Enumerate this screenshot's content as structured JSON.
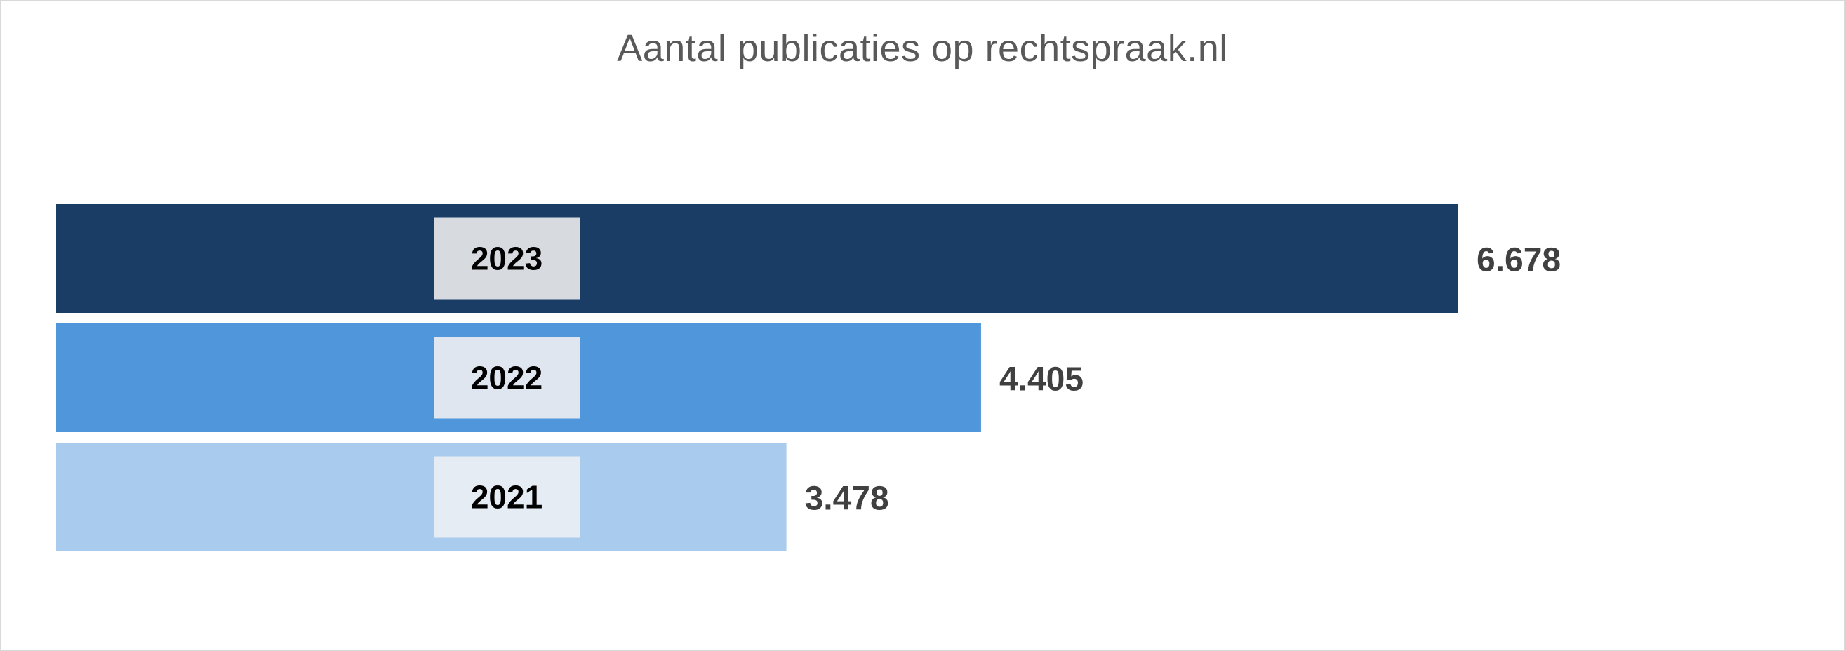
{
  "chart_data": {
    "type": "bar",
    "orientation": "horizontal",
    "title": "Aantal publicaties op rechtspraak.nl",
    "categories": [
      "2023",
      "2022",
      "2021"
    ],
    "values": [
      6678,
      4405,
      3478
    ],
    "value_labels": [
      "6.678",
      "4.405",
      "3.478"
    ],
    "xlim": [
      0,
      6678
    ],
    "xlabel": "",
    "ylabel": "",
    "grid": false,
    "legend": "none",
    "colors": [
      "#1a3d66",
      "#4f97da",
      "#a9cbed"
    ],
    "label_box_colors": [
      "#d7dbe0",
      "#dfe6ef",
      "#e6ecf4"
    ]
  }
}
